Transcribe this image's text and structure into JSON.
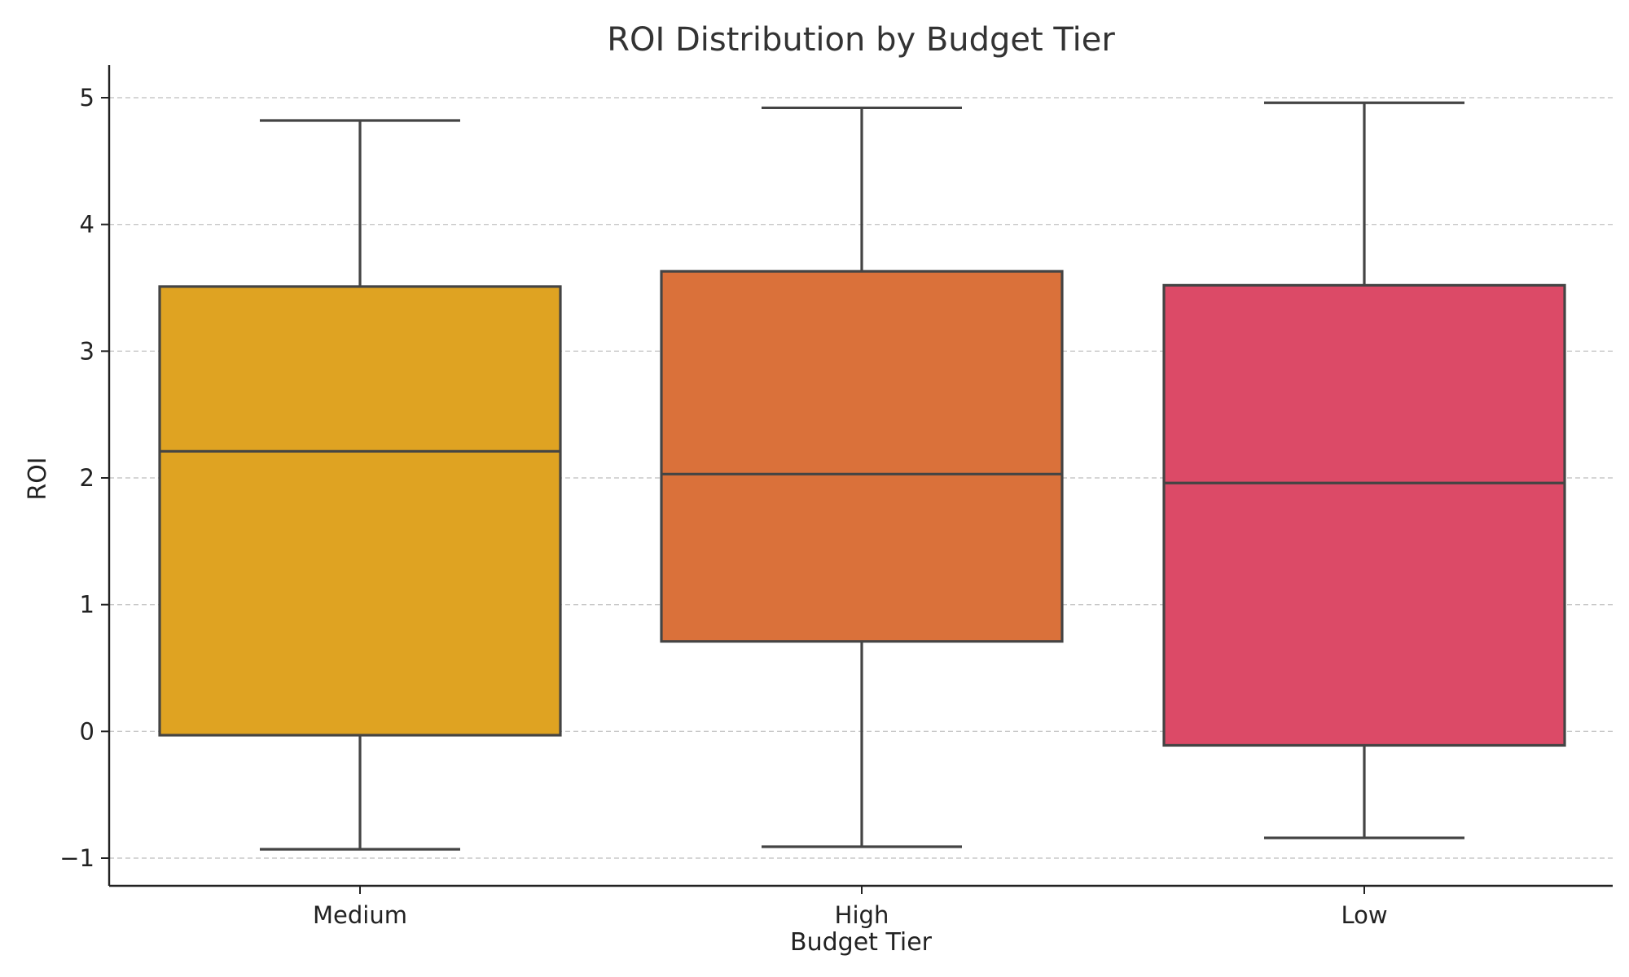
{
  "chart_data": {
    "type": "box",
    "title": "ROI Distribution by Budget Tier",
    "xlabel": "Budget Tier",
    "ylabel": "ROI",
    "categories": [
      "Medium",
      "High",
      "Low"
    ],
    "ylim": [
      -1.22,
      5.26
    ],
    "yticks": [
      -1,
      0,
      1,
      2,
      3,
      4,
      5
    ],
    "ytick_labels": [
      "−1",
      "0",
      "1",
      "2",
      "3",
      "4",
      "5"
    ],
    "grid": {
      "y": true,
      "x": false,
      "style": "dashed"
    },
    "legend": "none",
    "boxes": [
      {
        "category": "Medium",
        "whisker_low": -0.93,
        "q1": -0.03,
        "median": 2.21,
        "q3": 3.51,
        "whisker_high": 4.82,
        "color": "#DFA322"
      },
      {
        "category": "High",
        "whisker_low": -0.91,
        "q1": 0.71,
        "median": 2.03,
        "q3": 3.63,
        "whisker_high": 4.92,
        "color": "#DA713A"
      },
      {
        "category": "Low",
        "whisker_low": -0.84,
        "q1": -0.11,
        "median": 1.96,
        "q3": 3.52,
        "whisker_high": 4.96,
        "color": "#DC4A67"
      }
    ],
    "box_edge_color": "#444444"
  }
}
